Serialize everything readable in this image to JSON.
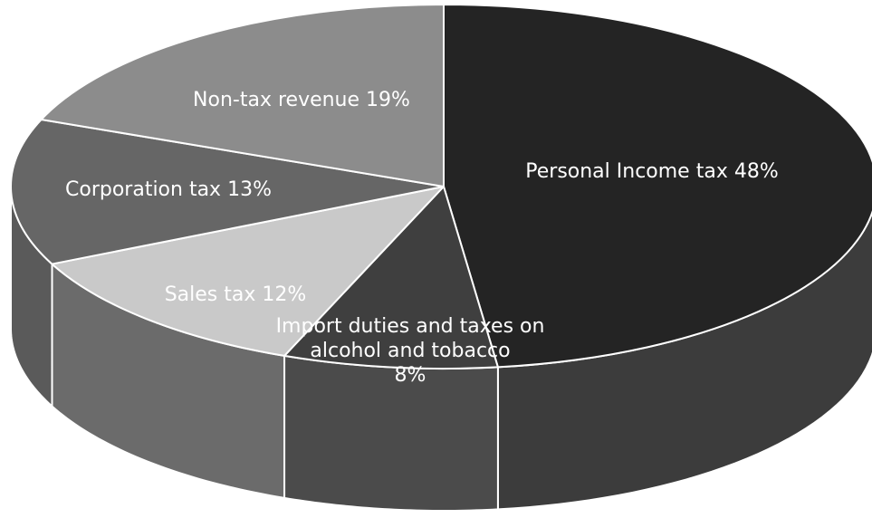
{
  "chart_data": {
    "type": "pie",
    "slices": [
      {
        "label": "Personal Income tax 48%",
        "value": 48,
        "color": "#242424",
        "side_color": "#3c3c3c",
        "text_color": "#ffffff"
      },
      {
        "label": "Import duties and taxes on alcohol and tobacco 8%",
        "value": 8,
        "color": "#3f3f3f",
        "side_color": "#4b4b4b",
        "text_color": "#ffffff"
      },
      {
        "label": "Sales tax 12%",
        "value": 12,
        "color": "#c9c9c9",
        "side_color": "#6b6b6b",
        "text_color": "#ffffff"
      },
      {
        "label": "Corporation tax 13%",
        "value": 13,
        "color": "#666666",
        "side_color": "#5a5a5a",
        "text_color": "#ffffff"
      },
      {
        "label": "Non-tax revenue 19%",
        "value": 19,
        "color": "#8c8c8c",
        "side_color": "#7a7a7a",
        "text_color": "#ffffff"
      }
    ],
    "legend": "none"
  }
}
